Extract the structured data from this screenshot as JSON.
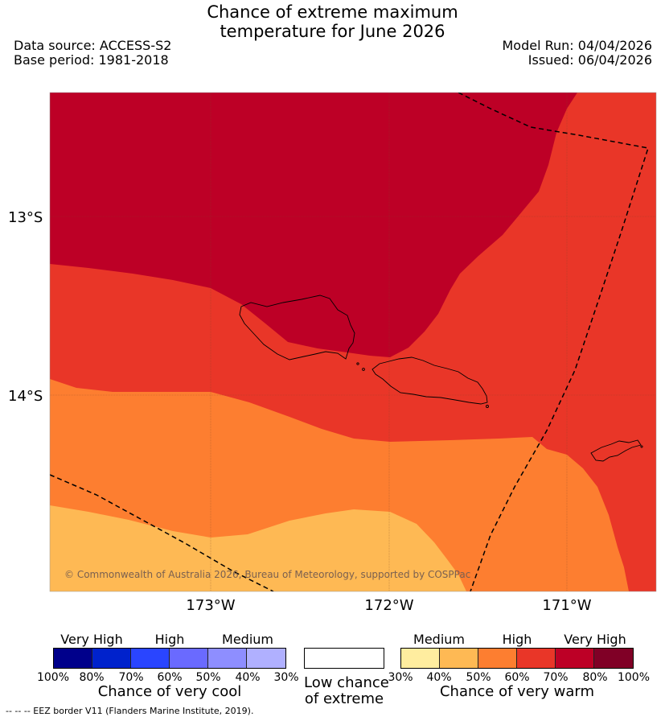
{
  "header": {
    "title_line1": "Chance of extreme maximum",
    "title_line2": "temperature for June 2026",
    "data_source": "Data source: ACCESS-S2",
    "base_period": "Base period: 1981-2018",
    "model_run": "Model Run: 04/04/2026",
    "issued": "Issued: 06/04/2026"
  },
  "map": {
    "lat_labels": [
      "13°S",
      "14°S"
    ],
    "lon_labels": [
      "173°W",
      "172°W",
      "171°W"
    ],
    "copyright": "© Commonwealth of Australia 2026, Bureau of Meteorology, supported by COSPPac",
    "colors": {
      "very_high_warm": "#bd0026",
      "high_warm_70": "#e93628",
      "high_warm_60": "#fd7e30",
      "medium_warm_50": "#feb954",
      "eez_border": "#000000"
    }
  },
  "legend": {
    "cool": {
      "categories": [
        "Very High",
        "High",
        "Medium"
      ],
      "ticks": [
        "100%",
        "80%",
        "70%",
        "60%",
        "50%",
        "40%",
        "30%"
      ],
      "colors": [
        "#00008b",
        "#0022cc",
        "#2a45ff",
        "#6a6aff",
        "#8e8eff",
        "#b0b0ff"
      ],
      "title": "Chance of very cool"
    },
    "neutral": {
      "label_line1": "Low chance",
      "label_line2": "of extreme",
      "color": "#ffffff"
    },
    "warm": {
      "categories": [
        "Medium",
        "High",
        "Very High"
      ],
      "ticks": [
        "30%",
        "40%",
        "50%",
        "60%",
        "70%",
        "80%",
        "100%"
      ],
      "colors": [
        "#ffed9f",
        "#feb954",
        "#fd7e30",
        "#e93628",
        "#bd0026",
        "#800026"
      ],
      "title": "Chance of very warm"
    }
  },
  "footnote": "--  --  -- EEZ border V11 (Flanders Marine Institute, 2019)."
}
